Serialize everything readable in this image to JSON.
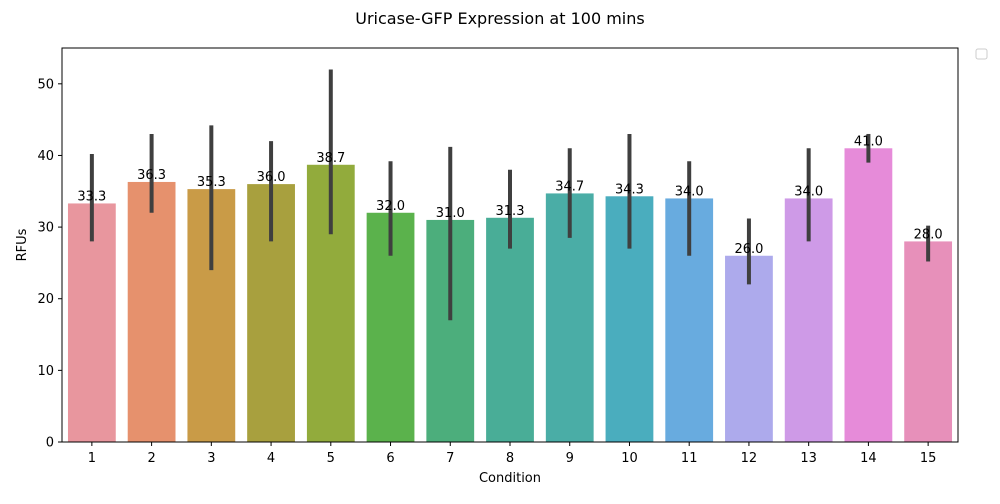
{
  "chart_data": {
    "type": "bar",
    "title": "Uricase-GFP Expression at 100 mins",
    "xlabel": "Condition",
    "ylabel": "RFUs",
    "ylim": [
      0,
      55
    ],
    "yticks": [
      0,
      10,
      20,
      30,
      40,
      50
    ],
    "grid": false,
    "legend": {
      "placement": "outside-top-right",
      "entries": []
    },
    "categories": [
      "1",
      "2",
      "3",
      "4",
      "5",
      "6",
      "7",
      "8",
      "9",
      "10",
      "11",
      "12",
      "13",
      "14",
      "15"
    ],
    "values": [
      33.3,
      36.3,
      35.3,
      36.0,
      38.7,
      32.0,
      31.0,
      31.3,
      34.7,
      34.3,
      34.0,
      26.0,
      34.0,
      41.0,
      28.0
    ],
    "value_labels": [
      "33.3",
      "36.3",
      "35.3",
      "36.0",
      "38.7",
      "32.0",
      "31.0",
      "31.3",
      "34.7",
      "34.3",
      "34.0",
      "26.0",
      "34.0",
      "41.0",
      "28.0"
    ],
    "error_bars": [
      [
        28,
        40.2
      ],
      [
        32,
        43
      ],
      [
        24,
        44.2
      ],
      [
        28,
        42
      ],
      [
        29,
        52
      ],
      [
        26,
        39.2
      ],
      [
        17,
        41.2
      ],
      [
        27,
        38
      ],
      [
        28.5,
        41
      ],
      [
        27,
        43
      ],
      [
        26,
        39.2
      ],
      [
        22,
        31.2
      ],
      [
        28,
        41
      ],
      [
        39,
        43
      ],
      [
        25.2,
        30.2
      ]
    ],
    "colors": [
      "#e8969e",
      "#e6916d",
      "#c99b47",
      "#a8a03e",
      "#92ab3c",
      "#5bb24c",
      "#4cae7c",
      "#49ad97",
      "#4aada6",
      "#4aadbe",
      "#68abdf",
      "#adaaec",
      "#ce9ae7",
      "#e68bd9",
      "#e790ba"
    ],
    "error_color": "#3f3f3f"
  }
}
